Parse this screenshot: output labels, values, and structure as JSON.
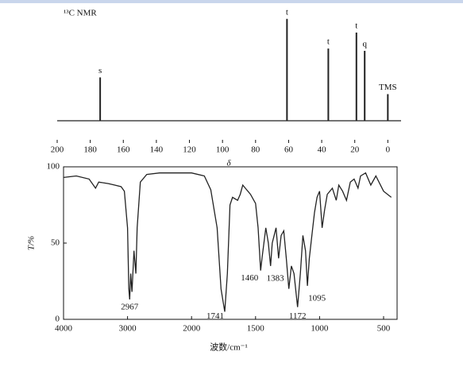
{
  "chart_data": [
    {
      "type": "stem",
      "title": "¹³C NMR",
      "xlabel": "δ",
      "x": [
        174,
        61,
        36,
        19,
        14,
        0
      ],
      "values": [
        57,
        134,
        95,
        116,
        92,
        35
      ],
      "peak_labels": [
        "s",
        "t",
        "t",
        "t",
        "q",
        "TMS"
      ],
      "xlim": [
        200,
        -8
      ],
      "ylim": [
        0,
        140
      ],
      "xticks": [
        200,
        180,
        160,
        140,
        120,
        100,
        80,
        60,
        40,
        20,
        0
      ],
      "color": "#222222"
    },
    {
      "type": "line",
      "xlabel": "波数/cm⁻¹",
      "ylabel": "T/%",
      "x": [
        4000,
        3800,
        3600,
        3500,
        3450,
        3300,
        3200,
        3100,
        3050,
        3000,
        2980,
        2967,
        2950,
        2930,
        2900,
        2870,
        2850,
        2800,
        2700,
        2500,
        2000,
        1900,
        1850,
        1800,
        1770,
        1741,
        1720,
        1700,
        1680,
        1640,
        1620,
        1600,
        1580,
        1540,
        1500,
        1480,
        1460,
        1450,
        1420,
        1400,
        1383,
        1370,
        1340,
        1320,
        1300,
        1280,
        1260,
        1240,
        1220,
        1200,
        1172,
        1150,
        1130,
        1110,
        1095,
        1080,
        1060,
        1040,
        1020,
        1000,
        980,
        960,
        940,
        900,
        870,
        850,
        820,
        790,
        760,
        730,
        700,
        680,
        640,
        600,
        560,
        500,
        440
      ],
      "values": [
        93,
        94,
        92,
        86,
        90,
        89,
        88,
        87,
        84,
        60,
        20,
        13,
        30,
        18,
        45,
        30,
        60,
        90,
        95,
        96,
        96,
        94,
        85,
        60,
        20,
        5,
        30,
        75,
        80,
        78,
        82,
        88,
        86,
        82,
        76,
        60,
        32,
        40,
        60,
        50,
        35,
        50,
        60,
        40,
        55,
        58,
        40,
        20,
        35,
        30,
        8,
        30,
        55,
        45,
        22,
        40,
        55,
        70,
        80,
        84,
        60,
        72,
        82,
        86,
        78,
        88,
        84,
        78,
        90,
        92,
        86,
        94,
        96,
        88,
        94,
        84,
        80
      ],
      "peak_labels": [
        2967,
        1741,
        1460,
        1383,
        1172,
        1095
      ],
      "xlim": [
        4000,
        400
      ],
      "ylim": [
        0,
        100
      ],
      "xticks": [
        4000,
        3000,
        2000,
        1500,
        1000,
        500
      ],
      "yticks": [
        0,
        50,
        100
      ],
      "color": "#222222"
    }
  ]
}
